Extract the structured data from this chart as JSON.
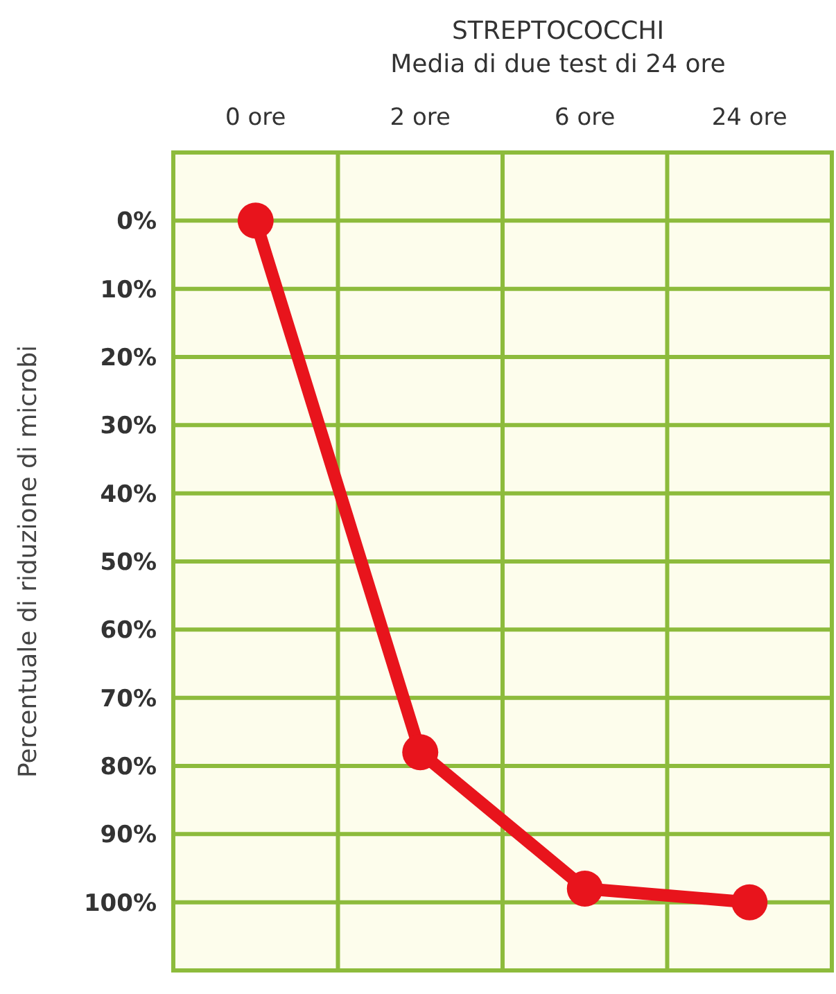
{
  "chart_data": {
    "type": "line",
    "title": "STREPTOCOCCHI",
    "subtitle": "Media di due test di 24 ore",
    "ylabel": "Percentuale di riduzione di microbi",
    "categories": [
      "0 ore",
      "2 ore",
      "6 ore",
      "24 ore"
    ],
    "series": [
      {
        "color": "#e8141c",
        "values": [
          0,
          78,
          98,
          100
        ]
      }
    ],
    "ylim": [
      110,
      -10
    ],
    "yticks": [
      {
        "value": 0,
        "label": "0%"
      },
      {
        "value": 10,
        "label": "10%"
      },
      {
        "value": 20,
        "label": "20%"
      },
      {
        "value": 30,
        "label": "30%"
      },
      {
        "value": 40,
        "label": "40%"
      },
      {
        "value": 50,
        "label": "50%"
      },
      {
        "value": 60,
        "label": "60%"
      },
      {
        "value": 70,
        "label": "70%"
      },
      {
        "value": 80,
        "label": "80%"
      },
      {
        "value": 90,
        "label": "90%"
      },
      {
        "value": 100,
        "label": "100%"
      }
    ],
    "grid": true,
    "marker": "circle",
    "line_style": "solid"
  }
}
